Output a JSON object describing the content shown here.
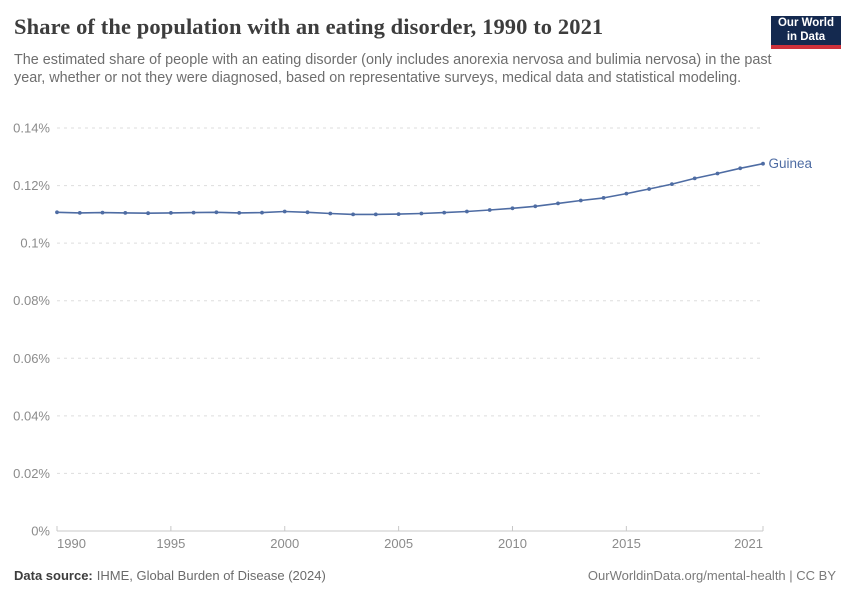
{
  "header": {
    "title": "Share of the population with an eating disorder, 1990 to 2021",
    "subtitle": "The estimated share of people with an eating disorder (only includes anorexia nervosa and bulimia nervosa) in the past year, whether or not they were diagnosed, based on representative surveys, medical data and statistical modeling.",
    "logo": {
      "line1": "Our World",
      "line2": "in Data",
      "bg_color": "#14294F",
      "stripe_color": "#CE313B"
    }
  },
  "chart_data": {
    "type": "line",
    "title": "Share of the population with an eating disorder, 1990 to 2021",
    "xlabel": "",
    "ylabel": "",
    "unit": "%",
    "grid": "horizontal-dashed",
    "legend_position": "end-of-line",
    "xlim": [
      1990,
      2021
    ],
    "ylim": [
      0,
      0.14
    ],
    "x_ticks": [
      1990,
      1995,
      2000,
      2005,
      2010,
      2015,
      2021
    ],
    "y_ticks": [
      {
        "value": 0.0,
        "label": "0%"
      },
      {
        "value": 0.02,
        "label": "0.02%"
      },
      {
        "value": 0.04,
        "label": "0.04%"
      },
      {
        "value": 0.06,
        "label": "0.06%"
      },
      {
        "value": 0.08,
        "label": "0.08%"
      },
      {
        "value": 0.1,
        "label": "0.1%"
      },
      {
        "value": 0.12,
        "label": "0.12%"
      },
      {
        "value": 0.14,
        "label": "0.14%"
      }
    ],
    "x": [
      1990,
      1991,
      1992,
      1993,
      1994,
      1995,
      1996,
      1997,
      1998,
      1999,
      2000,
      2001,
      2002,
      2003,
      2004,
      2005,
      2006,
      2007,
      2008,
      2009,
      2010,
      2011,
      2012,
      2013,
      2014,
      2015,
      2016,
      2017,
      2018,
      2019,
      2020,
      2021
    ],
    "series": [
      {
        "name": "Guinea",
        "color": "#4E6CA3",
        "values": [
          0.1107,
          0.1105,
          0.1106,
          0.1105,
          0.1104,
          0.1105,
          0.1106,
          0.1107,
          0.1105,
          0.1106,
          0.111,
          0.1107,
          0.1103,
          0.11,
          0.11,
          0.1101,
          0.1103,
          0.1106,
          0.111,
          0.1115,
          0.1121,
          0.1128,
          0.1138,
          0.1148,
          0.1157,
          0.1172,
          0.1188,
          0.1205,
          0.1225,
          0.1242,
          0.126,
          0.1276
        ]
      }
    ]
  },
  "footer": {
    "datasource_label": "Data source:",
    "datasource_value": "IHME, Global Burden of Disease (2024)",
    "attribution": "OurWorldinData.org/mental-health | CC BY"
  }
}
